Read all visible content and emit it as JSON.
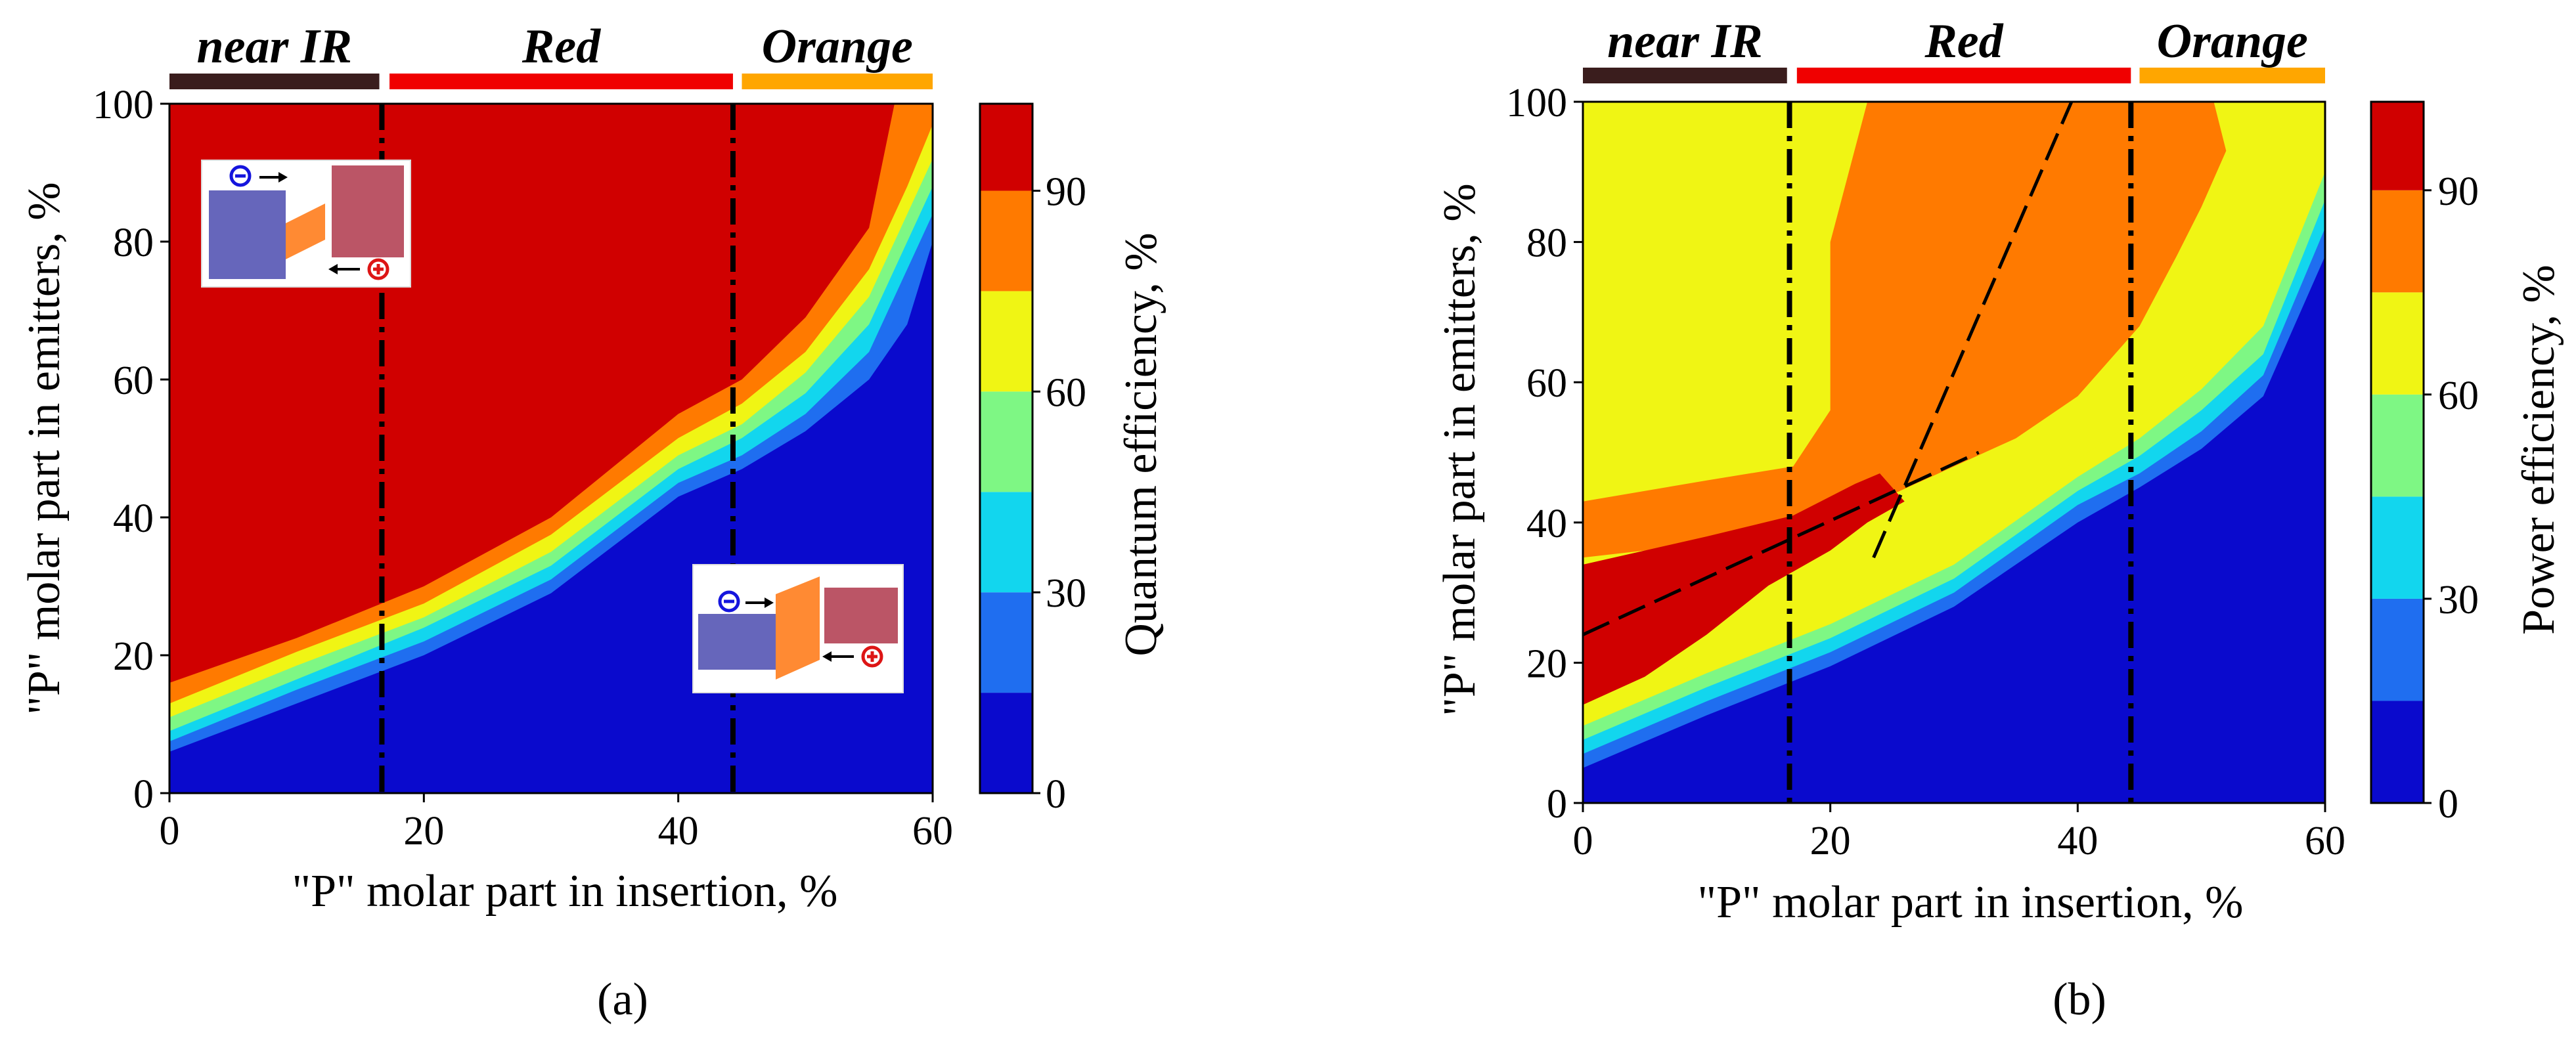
{
  "chart_data": [
    {
      "type": "heatmap",
      "subtype": "filled-contour",
      "id": "a",
      "panel_label": "(a)",
      "xlabel": "\"P\" molar part in insertion, %",
      "ylabel": "\"P\" molar part in emitters, %",
      "xlim": [
        0,
        60
      ],
      "ylim": [
        0,
        100
      ],
      "xticks": [
        0,
        20,
        40,
        60
      ],
      "yticks": [
        0,
        20,
        40,
        60,
        80,
        100
      ],
      "colorbar": {
        "label": "Quantum efficiency, %",
        "ticks": [
          0,
          30,
          60,
          90
        ],
        "levels": [
          {
            "lo": 0,
            "hi": 15,
            "color": "#0a0acd"
          },
          {
            "lo": 15,
            "hi": 30,
            "color": "#1f6ef0"
          },
          {
            "lo": 30,
            "hi": 45,
            "color": "#12d6ee"
          },
          {
            "lo": 45,
            "hi": 60,
            "color": "#7ef784"
          },
          {
            "lo": 60,
            "hi": 75,
            "color": "#f0f514"
          },
          {
            "lo": 75,
            "hi": 90,
            "color": "#ff7a00"
          },
          {
            "lo": 90,
            "hi": 103,
            "color": "#d00000"
          }
        ]
      },
      "bands": [
        {
          "label": "near IR",
          "x_from": 0,
          "x_to": 16.5,
          "color": "#3a1d1d"
        },
        {
          "label": "Red",
          "x_from": 17.3,
          "x_to": 44.3,
          "color": "#f00000"
        },
        {
          "label": "Orange",
          "x_from": 45,
          "x_to": 60,
          "color": "#ffa600"
        }
      ],
      "boundaries_x": [
        16.7,
        44.3
      ],
      "contours": [
        {
          "level": 90,
          "points": [
            [
              0,
              16
            ],
            [
              10,
              22.5
            ],
            [
              20,
              30
            ],
            [
              30,
              40
            ],
            [
              40,
              55
            ],
            [
              45,
              60
            ],
            [
              50,
              69
            ],
            [
              55,
              82
            ],
            [
              57,
              100
            ],
            [
              60,
              100
            ]
          ]
        },
        {
          "level": 75,
          "points": [
            [
              0,
              13
            ],
            [
              10,
              20.5
            ],
            [
              20,
              27.5
            ],
            [
              30,
              37.5
            ],
            [
              40,
              51.5
            ],
            [
              45,
              56.5
            ],
            [
              50,
              64
            ],
            [
              55,
              76
            ],
            [
              58,
              88
            ],
            [
              60,
              97
            ]
          ]
        },
        {
          "level": 60,
          "points": [
            [
              0,
              11
            ],
            [
              10,
              18.5
            ],
            [
              20,
              25.5
            ],
            [
              30,
              35
            ],
            [
              40,
              49
            ],
            [
              45,
              53.5
            ],
            [
              50,
              61
            ],
            [
              55,
              72
            ],
            [
              60,
              92
            ]
          ]
        },
        {
          "level": 45,
          "points": [
            [
              0,
              9
            ],
            [
              10,
              16.5
            ],
            [
              20,
              24
            ],
            [
              30,
              33
            ],
            [
              40,
              47
            ],
            [
              45,
              51.5
            ],
            [
              50,
              58
            ],
            [
              55,
              68
            ],
            [
              60,
              88
            ]
          ]
        },
        {
          "level": 30,
          "points": [
            [
              0,
              7.5
            ],
            [
              10,
              15
            ],
            [
              20,
              22
            ],
            [
              30,
              31
            ],
            [
              40,
              45
            ],
            [
              45,
              49
            ],
            [
              50,
              55
            ],
            [
              55,
              64
            ],
            [
              60,
              84
            ]
          ]
        },
        {
          "level": 15,
          "points": [
            [
              0,
              6
            ],
            [
              10,
              13
            ],
            [
              20,
              20
            ],
            [
              30,
              29
            ],
            [
              40,
              43
            ],
            [
              45,
              47
            ],
            [
              50,
              52.5
            ],
            [
              55,
              60
            ],
            [
              58,
              68
            ],
            [
              60,
              80
            ]
          ]
        }
      ],
      "insets": [
        {
          "name": "band-diagram-inset-electron-top",
          "description": "band diagram, electron arrow top, hole arrow bottom"
        },
        {
          "name": "band-diagram-inset-hole-bottom",
          "description": "band diagram, electron arrow top, hole arrow bottom"
        }
      ]
    },
    {
      "type": "heatmap",
      "subtype": "filled-contour",
      "id": "b",
      "panel_label": "(b)",
      "xlabel": "\"P\" molar part in insertion, %",
      "ylabel": "\"P\" molar part in emitters, %",
      "xlim": [
        0,
        60
      ],
      "ylim": [
        0,
        100
      ],
      "xticks": [
        0,
        20,
        40,
        60
      ],
      "yticks": [
        0,
        20,
        40,
        60,
        80,
        100
      ],
      "colorbar": {
        "label": "Power efficiency, %",
        "ticks": [
          0,
          30,
          60,
          90
        ],
        "levels": [
          {
            "lo": 0,
            "hi": 15,
            "color": "#0a0acd"
          },
          {
            "lo": 15,
            "hi": 30,
            "color": "#1f6ef0"
          },
          {
            "lo": 30,
            "hi": 45,
            "color": "#12d6ee"
          },
          {
            "lo": 45,
            "hi": 60,
            "color": "#7ef784"
          },
          {
            "lo": 60,
            "hi": 75,
            "color": "#f0f514"
          },
          {
            "lo": 75,
            "hi": 90,
            "color": "#ff7a00"
          },
          {
            "lo": 90,
            "hi": 103,
            "color": "#d00000"
          }
        ]
      },
      "bands": [
        {
          "label": "near IR",
          "x_from": 0,
          "x_to": 16.5,
          "color": "#3a1d1d"
        },
        {
          "label": "Red",
          "x_from": 17.3,
          "x_to": 44.3,
          "color": "#f00000"
        },
        {
          "label": "Orange",
          "x_from": 45,
          "x_to": 60,
          "color": "#ffa600"
        }
      ],
      "boundaries_x": [
        16.7,
        44.3
      ],
      "regions": {
        "background_color": "#f0f514",
        "orange_polygon": [
          [
            0,
            43
          ],
          [
            10,
            46
          ],
          [
            17,
            48
          ],
          [
            20,
            56
          ],
          [
            20,
            80
          ],
          [
            23,
            100
          ],
          [
            51,
            100
          ],
          [
            52,
            93
          ],
          [
            50,
            85
          ],
          [
            48,
            78
          ],
          [
            45,
            68
          ],
          [
            40,
            58
          ],
          [
            35,
            52
          ],
          [
            30,
            48
          ],
          [
            25,
            44
          ],
          [
            20,
            41.5
          ],
          [
            15,
            39.5
          ],
          [
            10,
            37.5
          ],
          [
            5,
            36
          ],
          [
            0,
            35
          ]
        ],
        "red_polygon": [
          [
            0,
            34
          ],
          [
            10,
            38
          ],
          [
            17,
            41
          ],
          [
            22,
            45.5
          ],
          [
            24,
            47
          ],
          [
            26,
            43
          ],
          [
            23,
            40
          ],
          [
            20,
            36
          ],
          [
            15,
            31
          ],
          [
            10,
            24
          ],
          [
            5,
            18
          ],
          [
            0,
            14
          ]
        ]
      },
      "contours": [
        {
          "level": 75,
          "points": [
            [
              0,
              13
            ],
            [
              10,
              20.5
            ],
            [
              20,
              27.5
            ],
            [
              30,
              36.5
            ],
            [
              40,
              49
            ],
            [
              45,
              55
            ],
            [
              50,
              63
            ],
            [
              55,
              73
            ],
            [
              58,
              83
            ],
            [
              60,
              100
            ]
          ]
        },
        {
          "level": 60,
          "points": [
            [
              0,
              11
            ],
            [
              10,
              18.5
            ],
            [
              20,
              25.5
            ],
            [
              30,
              34
            ],
            [
              40,
              46.5
            ],
            [
              45,
              52
            ],
            [
              50,
              59
            ],
            [
              55,
              68
            ],
            [
              60,
              90
            ]
          ]
        },
        {
          "level": 45,
          "points": [
            [
              0,
              9
            ],
            [
              10,
              16.5
            ],
            [
              20,
              23.5
            ],
            [
              30,
              32
            ],
            [
              40,
              44.5
            ],
            [
              45,
              49.5
            ],
            [
              50,
              56
            ],
            [
              55,
              64
            ],
            [
              60,
              86
            ]
          ]
        },
        {
          "level": 30,
          "points": [
            [
              0,
              7
            ],
            [
              10,
              14.5
            ],
            [
              20,
              21.5
            ],
            [
              30,
              30
            ],
            [
              40,
              42.5
            ],
            [
              45,
              47
            ],
            [
              50,
              53
            ],
            [
              55,
              61
            ],
            [
              60,
              82
            ]
          ]
        },
        {
          "level": 15,
          "points": [
            [
              0,
              5
            ],
            [
              10,
              12.5
            ],
            [
              20,
              19.5
            ],
            [
              30,
              28
            ],
            [
              40,
              40
            ],
            [
              45,
              45
            ],
            [
              50,
              50.5
            ],
            [
              55,
              58
            ],
            [
              60,
              78
            ]
          ]
        }
      ],
      "dashed_lines": [
        {
          "from": [
            0,
            24
          ],
          "to": [
            32,
            50
          ]
        },
        {
          "from": [
            23.5,
            35
          ],
          "to": [
            39.5,
            100
          ]
        }
      ]
    }
  ]
}
